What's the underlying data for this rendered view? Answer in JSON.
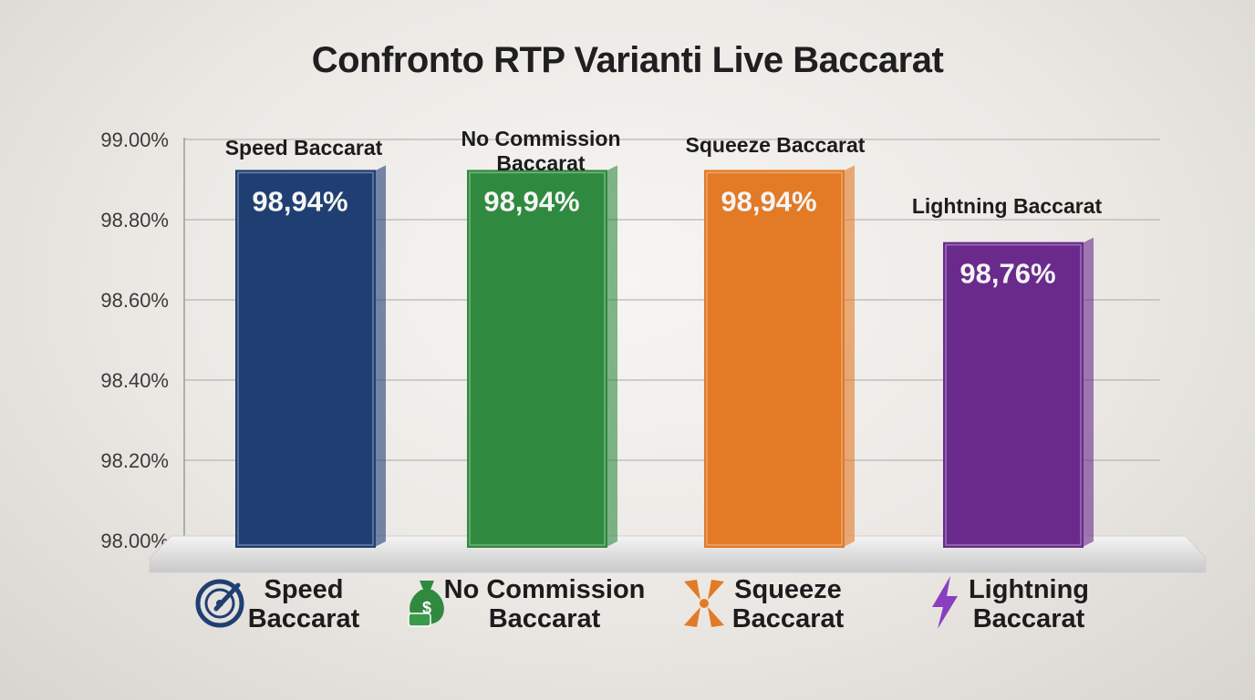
{
  "chart_data": {
    "type": "bar",
    "title": "Confronto RTP Varianti Live Baccarat",
    "categories": [
      "Speed Baccarat",
      "No Commission Baccarat",
      "Squeeze Baccarat",
      "Lightning Baccarat"
    ],
    "values": [
      98.94,
      98.94,
      98.94,
      98.76
    ],
    "value_labels": [
      "98,94%",
      "98,94%",
      "98,94%",
      "98,76%"
    ],
    "yticks": [
      98.0,
      98.2,
      98.4,
      98.6,
      98.8,
      99.0
    ],
    "ytick_labels": [
      "98.00%",
      "98.20%",
      "98.40%",
      "98.60%",
      "98.80%",
      "99.00%"
    ],
    "ylim": [
      98.0,
      99.0
    ],
    "grid": true,
    "xlabel": "",
    "ylabel": "",
    "colors": [
      "#1f3f73",
      "#2f8a3f",
      "#e27a26",
      "#6a2a8c"
    ],
    "legend": [
      {
        "lines": [
          "Speed",
          "Baccarat"
        ],
        "icon": "speedometer-icon",
        "color": "#1f3f73"
      },
      {
        "lines": [
          "No Commission",
          "Baccarat"
        ],
        "icon": "money-bag-icon",
        "color": "#2f8a3f"
      },
      {
        "lines": [
          "Squeeze",
          "Baccarat"
        ],
        "icon": "squeeze-cards-icon",
        "color": "#e27a26"
      },
      {
        "lines": [
          "Lightning",
          "Baccarat"
        ],
        "icon": "lightning-bolt-icon",
        "color": "#8a3fc0"
      }
    ]
  }
}
